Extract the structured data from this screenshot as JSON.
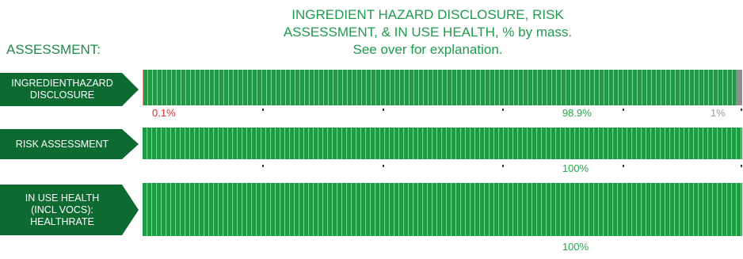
{
  "title_lines": [
    "INGREDIENT HAZARD DISCLOSURE, RISK",
    "ASSESSMENT, & IN USE HEALTH, % by mass.",
    "See over for explanation."
  ],
  "section_label": "ASSESSMENT:",
  "colors": {
    "label_bg": "#0d6a31",
    "green": "#22a84b",
    "red": "#e32b2b",
    "grey": "#8f8f8f",
    "title": "#1f9a4c"
  },
  "rows": [
    {
      "label_lines": [
        "INGREDIENTHAZARD",
        "DISCLOSURE"
      ]
    },
    {
      "label_lines": [
        "RISK ASSESSMENT"
      ]
    },
    {
      "label_lines": [
        "IN USE HEALTH",
        "(INCL VOCS):",
        "HEALTHRATE"
      ]
    }
  ],
  "chart_data": {
    "type": "bar",
    "orientation": "horizontal",
    "stacked": true,
    "unit": "% by mass",
    "categories": [
      "INGREDIENTHAZARD DISCLOSURE",
      "RISK ASSESSMENT",
      "IN USE HEALTH (INCL VOCS): HEALTHRATE"
    ],
    "series": [
      {
        "color": "#e98989",
        "values": [
          0.1,
          0,
          0
        ]
      },
      {
        "color": "#22a84b",
        "values": [
          98.9,
          100,
          100
        ]
      },
      {
        "color": "#8f8f8f",
        "values": [
          1,
          0,
          0
        ]
      }
    ],
    "data_labels": [
      [
        {
          "text": "0.1%",
          "series": 0,
          "color": "red"
        },
        {
          "text": "98.9%",
          "series": 1,
          "color": "green"
        },
        {
          "text": "1%",
          "series": 2,
          "color": "grey"
        }
      ],
      [
        {
          "text": "100%",
          "series": 1,
          "color": "green"
        }
      ],
      [
        {
          "text": "100%",
          "series": 1,
          "color": "green"
        }
      ]
    ],
    "xlim": [
      0,
      100
    ],
    "tick_values": [
      20,
      40,
      60,
      80,
      100
    ]
  }
}
